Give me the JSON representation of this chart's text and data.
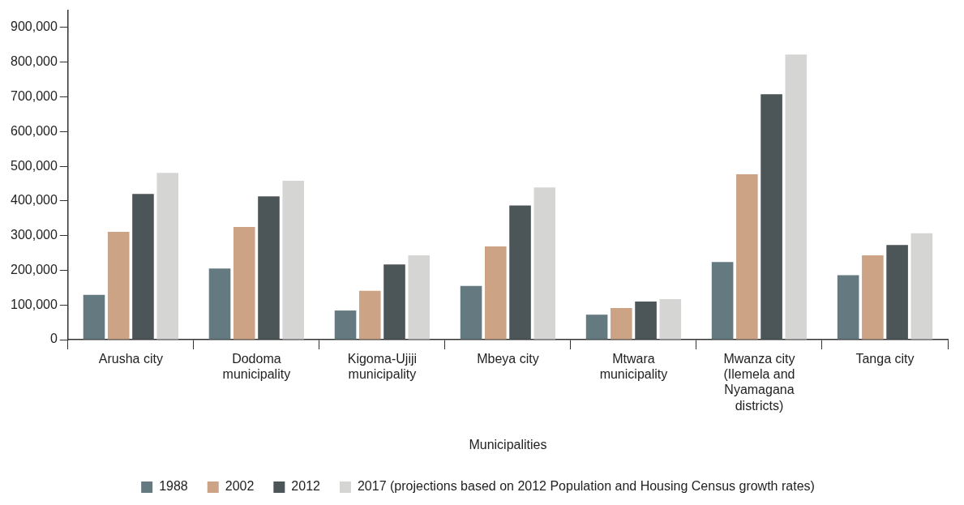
{
  "chart_data": {
    "type": "bar",
    "xlabel": "Municipalities",
    "categories": [
      "Arusha city",
      "Dodoma municipality",
      "Kigoma-Ujiji municipality",
      "Mbeya city",
      "Mtwara municipality",
      "Mwanza city (Ilemela and Nyamagana districts)",
      "Tanga city"
    ],
    "series": [
      {
        "name": "1988",
        "color": "#657a80",
        "values": [
          129000,
          205000,
          84000,
          155000,
          72000,
          224000,
          186000
        ]
      },
      {
        "name": "2002",
        "color": "#cca385",
        "values": [
          311000,
          325000,
          141000,
          269000,
          91000,
          477000,
          243000
        ]
      },
      {
        "name": "2012",
        "color": "#4c5557",
        "values": [
          420000,
          413000,
          217000,
          387000,
          110000,
          708000,
          273000
        ]
      },
      {
        "name": "2017 (projections based on 2012 Population and Housing Census growth rates)",
        "color": "#d5d6d4",
        "values": [
          481000,
          458000,
          243000,
          439000,
          117000,
          822000,
          307000
        ]
      }
    ],
    "ylim": [
      0,
      950000
    ],
    "yticks": [
      0,
      {
        "value": 100000,
        "label": "100,000"
      },
      {
        "value": 200000,
        "label": "200,000"
      },
      {
        "value": 300000,
        "label": "300,000"
      },
      {
        "value": 400000,
        "label": "400,000"
      },
      {
        "value": 500000,
        "label": "500,000"
      },
      {
        "value": 600000,
        "label": "600,000"
      },
      {
        "value": 700000,
        "label": "700,000"
      },
      {
        "value": 800000,
        "label": "800,000"
      },
      {
        "value": 900000,
        "label": "900,000"
      }
    ],
    "grid": false,
    "legend": "bottom"
  }
}
